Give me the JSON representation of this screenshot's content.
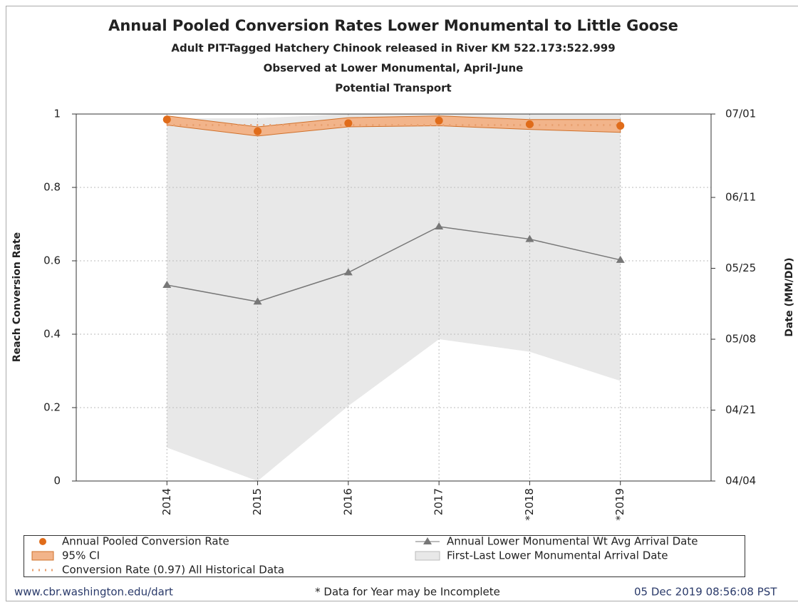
{
  "chart_data": {
    "type": "line",
    "title": "Annual Pooled Conversion Rates Lower Monumental to Little Goose",
    "subtitles": [
      "Adult PIT-Tagged Hatchery Chinook released in River KM 522.173:522.999",
      "Observed at Lower Monumental, April-June",
      "Potential Transport"
    ],
    "ylabel": "Reach Conversion Rate",
    "y2label": "Date (MM/DD)",
    "categories": [
      "2014",
      "2015",
      "2016",
      "2017",
      "*2018",
      "*2019"
    ],
    "ylim": [
      0,
      1
    ],
    "yticks": [
      0,
      0.2,
      0.4,
      0.6,
      0.8,
      1
    ],
    "y2lim": [
      94,
      182
    ],
    "y2ticks": [
      {
        "value": 94,
        "label": "04/04"
      },
      {
        "value": 111,
        "label": "04/21"
      },
      {
        "value": 128,
        "label": "05/08"
      },
      {
        "value": 145,
        "label": "05/25"
      },
      {
        "value": 162,
        "label": "06/11"
      },
      {
        "value": 182,
        "label": "07/01"
      }
    ],
    "grid": true,
    "series": [
      {
        "name": "Annual Pooled Conversion Rate",
        "color": "#e06c1a",
        "values": [
          0.985,
          0.953,
          0.975,
          0.982,
          0.972,
          0.968
        ]
      },
      {
        "name": "95% CI",
        "color": "#f2b48a",
        "lower": [
          0.97,
          0.94,
          0.965,
          0.968,
          0.958,
          0.95
        ],
        "upper": [
          0.995,
          0.965,
          0.99,
          0.995,
          0.985,
          0.985
        ]
      },
      {
        "name": "Conversion Rate (0.97) All Historical Data",
        "color": "#e8a070",
        "value": 0.97
      },
      {
        "name": "Annual Lower Monumental Wt Avg Arrival Date",
        "color": "#777777",
        "axis": "y2",
        "values": [
          141,
          137,
          144,
          155,
          152,
          147
        ]
      },
      {
        "name": "First-Last Lower Monumental Arrival Date",
        "color": "#e8e8e8",
        "axis": "y2",
        "lower": [
          102,
          94,
          112,
          128,
          125,
          118
        ],
        "upper": [
          181,
          181,
          182,
          182,
          182,
          182
        ]
      }
    ],
    "footer": [
      "www.cbr.washington.edu/dart",
      "* Data for Year may be Incomplete",
      "05 Dec 2019 08:56:08 PST"
    ]
  }
}
